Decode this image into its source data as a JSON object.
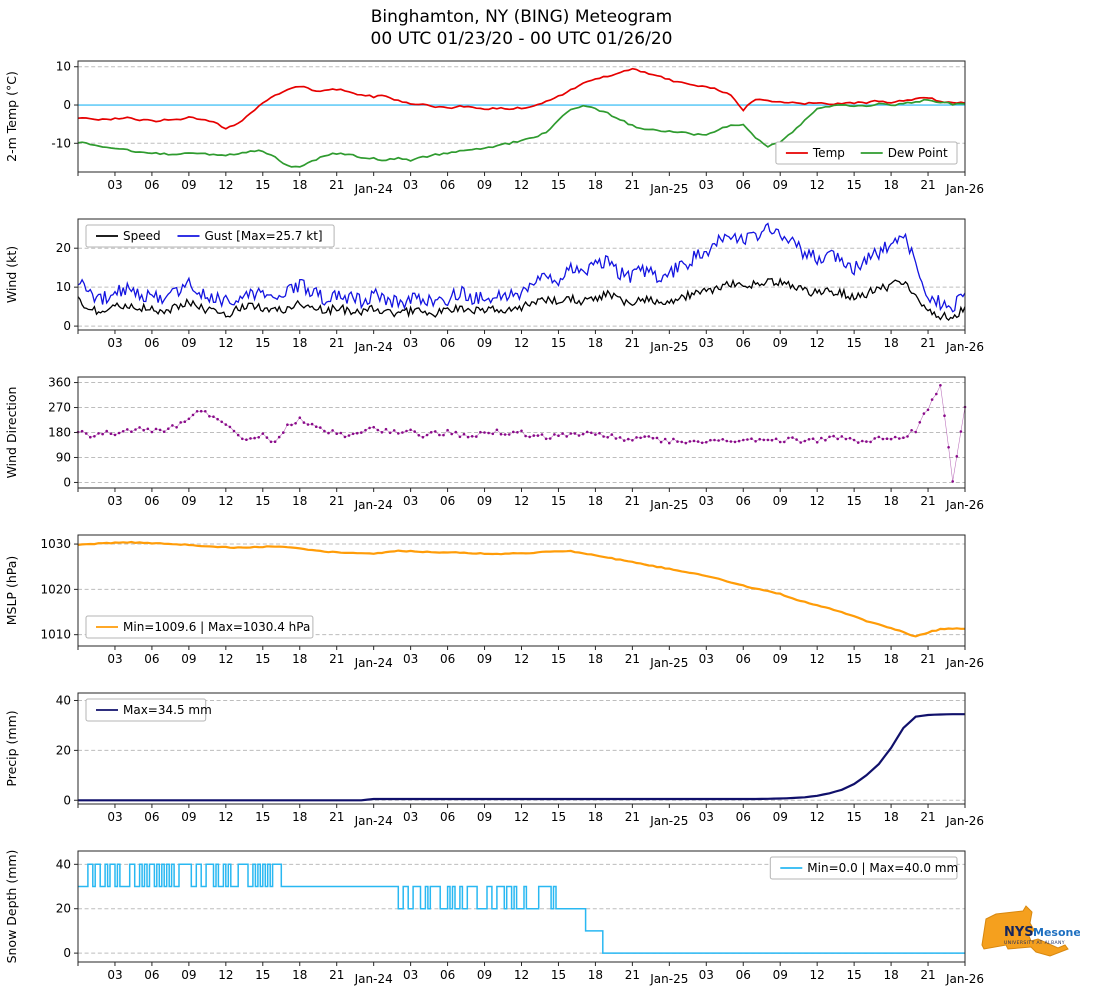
{
  "title": "Binghamton, NY (BING) Meteogram",
  "subtitle": "00 UTC 01/23/20 - 00 UTC 01/26/20",
  "logo": {
    "org": "NYS",
    "name": "Mesonet",
    "tagline": "UNIVERSITY AT ALBANY"
  },
  "x_axis": {
    "end_hour": 72,
    "tick_interval": 3,
    "day_labels": {
      "24": "Jan-24",
      "48": "Jan-25",
      "72": "Jan-26"
    }
  },
  "chart_data": [
    {
      "id": "temp",
      "type": "line",
      "ylabel": "2-m Temp (°C)",
      "ylim": [
        -17.5,
        11.5
      ],
      "yticks": [
        -10,
        0,
        10
      ],
      "refline": {
        "y": 0,
        "color": "#4cc3f5"
      },
      "legend": {
        "position": "bottom-right",
        "entries": [
          {
            "label": "Temp",
            "color": "#e60000"
          },
          {
            "label": "Dew Point",
            "color": "#2f9b2f"
          }
        ]
      },
      "series": [
        {
          "name": "Temp",
          "color": "#e60000",
          "width": 1.7,
          "subdiv": 3,
          "jitter": 0.25,
          "values": [
            -3.2,
            -3.6,
            -3.8,
            -3.5,
            -3.2,
            -3.8,
            -4.2,
            -4.0,
            -3.8,
            -3.3,
            -3.6,
            -4.6,
            -6.0,
            -4.8,
            -2.0,
            0.5,
            2.5,
            4.2,
            5.0,
            4.0,
            3.6,
            4.2,
            3.4,
            2.6,
            2.2,
            2.4,
            1.0,
            0.3,
            0.2,
            -0.4,
            -0.8,
            -0.3,
            -0.6,
            -1.0,
            -0.8,
            -0.9,
            -0.7,
            -0.2,
            0.8,
            2.2,
            4.0,
            5.8,
            6.8,
            7.6,
            8.6,
            9.3,
            8.6,
            7.6,
            6.6,
            5.8,
            5.2,
            4.6,
            4.0,
            2.6,
            -1.2,
            1.6,
            1.2,
            0.8,
            0.6,
            0.4,
            0.5,
            0.3,
            0.5,
            0.5,
            0.7,
            1.0,
            0.8,
            1.0,
            1.5,
            2.0,
            1.0,
            0.6,
            0.5
          ]
        },
        {
          "name": "Dew Point",
          "color": "#2f9b2f",
          "width": 1.7,
          "subdiv": 3,
          "jitter": 0.25,
          "values": [
            -9.8,
            -10.3,
            -10.8,
            -11.3,
            -11.8,
            -12.3,
            -12.6,
            -12.8,
            -12.9,
            -12.5,
            -12.6,
            -12.9,
            -13.0,
            -12.6,
            -12.2,
            -12.0,
            -13.5,
            -15.8,
            -16.2,
            -14.8,
            -13.2,
            -12.6,
            -12.8,
            -13.6,
            -14.0,
            -14.4,
            -14.0,
            -14.5,
            -13.6,
            -13.0,
            -12.5,
            -12.0,
            -11.6,
            -11.2,
            -10.6,
            -10.0,
            -9.4,
            -8.5,
            -7.0,
            -4.0,
            -1.2,
            -0.2,
            -1.0,
            -2.2,
            -3.8,
            -5.4,
            -6.2,
            -6.6,
            -6.8,
            -7.2,
            -7.6,
            -8.0,
            -6.5,
            -5.2,
            -5.0,
            -8.5,
            -11.0,
            -9.5,
            -7.0,
            -4.0,
            -1.0,
            -0.4,
            -0.1,
            -0.3,
            -0.1,
            0.2,
            0.0,
            0.4,
            0.9,
            1.4,
            0.7,
            0.3,
            0.3
          ]
        }
      ]
    },
    {
      "id": "wind",
      "type": "line",
      "ylabel": "Wind (kt)",
      "ylim": [
        -1,
        27.5
      ],
      "yticks": [
        0,
        10,
        20
      ],
      "legend": {
        "position": "top-left",
        "entries": [
          {
            "label": "Speed",
            "color": "#000000"
          },
          {
            "label": "Gust [Max=25.7 kt]",
            "color": "#1414e0"
          }
        ]
      },
      "series": [
        {
          "name": "Speed",
          "color": "#000000",
          "width": 1.3,
          "subdiv": 6,
          "jitter": 1.1,
          "clamp": [
            0.2,
            50
          ],
          "values": [
            6.5,
            4.5,
            3.8,
            4.8,
            5.8,
            4.6,
            4.2,
            3.6,
            4.8,
            6.2,
            4.6,
            3.6,
            3.0,
            4.2,
            5.0,
            4.6,
            3.8,
            4.6,
            6.0,
            4.8,
            3.8,
            4.6,
            4.0,
            3.6,
            4.4,
            3.8,
            3.2,
            3.8,
            4.0,
            3.2,
            3.8,
            4.6,
            4.0,
            3.8,
            4.6,
            4.2,
            5.0,
            6.0,
            7.0,
            6.2,
            7.2,
            6.4,
            7.4,
            8.2,
            6.6,
            6.2,
            7.0,
            6.4,
            6.6,
            7.4,
            8.2,
            9.0,
            10.0,
            11.0,
            10.2,
            11.0,
            11.8,
            11.2,
            10.2,
            9.2,
            8.4,
            9.2,
            8.4,
            7.6,
            8.4,
            9.4,
            10.2,
            11.8,
            8.0,
            4.0,
            2.8,
            2.0,
            5.0
          ]
        },
        {
          "name": "Gust",
          "color": "#1414e0",
          "width": 1.3,
          "subdiv": 6,
          "jitter": 1.9,
          "clamp": [
            0.2,
            50
          ],
          "values": [
            11.5,
            8.5,
            7.0,
            8.5,
            10.0,
            8.0,
            7.5,
            6.5,
            9.0,
            11.5,
            8.5,
            7.0,
            6.0,
            8.0,
            9.0,
            8.0,
            7.0,
            8.5,
            11.0,
            9.0,
            7.0,
            8.5,
            7.5,
            6.5,
            8.0,
            7.0,
            6.0,
            7.0,
            7.5,
            6.0,
            7.0,
            8.5,
            7.5,
            7.0,
            8.5,
            7.5,
            9.0,
            11.5,
            13.5,
            12.0,
            14.5,
            12.5,
            15.5,
            16.5,
            13.5,
            12.5,
            14.5,
            13.0,
            13.5,
            15.5,
            17.5,
            19.5,
            21.5,
            23.5,
            21.5,
            23.5,
            25.7,
            23.0,
            21.0,
            19.0,
            17.0,
            19.0,
            17.0,
            15.0,
            17.0,
            19.0,
            21.0,
            24.0,
            16.0,
            8.0,
            6.0,
            5.0,
            8.5
          ]
        }
      ]
    },
    {
      "id": "winddir",
      "type": "scatter",
      "ylabel": "Wind Direction",
      "ylim": [
        -20,
        380
      ],
      "yticks": [
        0,
        90,
        180,
        270,
        360
      ],
      "series": [
        {
          "name": "Direction",
          "color": "#8a0b8a",
          "style": "dots",
          "subdiv": 3,
          "jitter": 9,
          "clamp": [
            0,
            360
          ],
          "values": [
            178,
            172,
            180,
            170,
            186,
            192,
            188,
            182,
            205,
            235,
            255,
            235,
            205,
            165,
            152,
            168,
            148,
            205,
            228,
            212,
            188,
            176,
            168,
            182,
            192,
            186,
            176,
            182,
            172,
            176,
            180,
            172,
            168,
            176,
            182,
            172,
            178,
            170,
            165,
            172,
            168,
            176,
            170,
            166,
            160,
            158,
            163,
            155,
            150,
            148,
            153,
            146,
            150,
            156,
            148,
            153,
            158,
            150,
            156,
            148,
            152,
            156,
            162,
            150,
            146,
            156,
            162,
            168,
            188,
            268,
            352,
            8,
            272
          ]
        }
      ]
    },
    {
      "id": "mslp",
      "type": "line",
      "ylabel": "MSLP (hPa)",
      "ylim": [
        1007.5,
        1032
      ],
      "yticks": [
        1010,
        1020,
        1030
      ],
      "legend": {
        "position": "bottom-left",
        "entries": [
          {
            "label": "Min=1009.6 | Max=1030.4 hPa",
            "color": "#ff9c08"
          }
        ]
      },
      "series": [
        {
          "name": "MSLP",
          "color": "#ff9c08",
          "width": 2.2,
          "subdiv": 3,
          "jitter": 0.1,
          "values": [
            1029.8,
            1030.0,
            1030.2,
            1030.3,
            1030.4,
            1030.3,
            1030.2,
            1030.1,
            1030.0,
            1029.8,
            1029.6,
            1029.4,
            1029.3,
            1029.2,
            1029.3,
            1029.4,
            1029.5,
            1029.4,
            1029.0,
            1028.6,
            1028.3,
            1028.2,
            1028.1,
            1028.0,
            1027.9,
            1028.2,
            1028.5,
            1028.4,
            1028.3,
            1028.2,
            1028.2,
            1028.1,
            1028.0,
            1027.9,
            1027.8,
            1027.9,
            1028.0,
            1028.1,
            1028.3,
            1028.5,
            1028.4,
            1028.0,
            1027.5,
            1027.0,
            1026.5,
            1026.0,
            1025.5,
            1025.0,
            1024.5,
            1024.0,
            1023.5,
            1023.0,
            1022.3,
            1021.5,
            1020.8,
            1020.2,
            1019.6,
            1019.0,
            1018.0,
            1017.2,
            1016.5,
            1015.8,
            1015.0,
            1014.0,
            1013.0,
            1012.2,
            1011.5,
            1010.5,
            1009.6,
            1010.5,
            1011.2,
            1011.4,
            1011.3
          ]
        }
      ]
    },
    {
      "id": "precip",
      "type": "line",
      "ylabel": "Precip (mm)",
      "ylim": [
        -1.5,
        43
      ],
      "yticks": [
        0,
        20,
        40
      ],
      "legend": {
        "position": "top-left",
        "entries": [
          {
            "label": "Max=34.5 mm",
            "color": "#10106b"
          }
        ]
      },
      "series": [
        {
          "name": "Precip",
          "color": "#10106b",
          "width": 2.2,
          "subdiv": 2,
          "jitter": 0,
          "values": [
            0,
            0,
            0,
            0,
            0,
            0,
            0,
            0,
            0,
            0,
            0,
            0,
            0,
            0,
            0,
            0,
            0,
            0,
            0,
            0,
            0,
            0,
            0,
            0,
            0.5,
            0.5,
            0.5,
            0.5,
            0.5,
            0.5,
            0.5,
            0.5,
            0.5,
            0.5,
            0.5,
            0.5,
            0.5,
            0.5,
            0.5,
            0.5,
            0.5,
            0.5,
            0.5,
            0.5,
            0.5,
            0.5,
            0.5,
            0.5,
            0.5,
            0.5,
            0.5,
            0.5,
            0.5,
            0.5,
            0.5,
            0.5,
            0.6,
            0.7,
            0.9,
            1.2,
            1.8,
            2.8,
            4.2,
            6.5,
            10.0,
            14.5,
            21.0,
            29.0,
            33.5,
            34.2,
            34.4,
            34.5,
            34.5
          ]
        }
      ]
    },
    {
      "id": "snow",
      "type": "line",
      "ylabel": "Snow Depth (mm)",
      "ylim": [
        -4,
        46
      ],
      "yticks": [
        0,
        20,
        40
      ],
      "legend": {
        "position": "top-right",
        "entries": [
          {
            "label": "Min=0.0 | Max=40.0 mm",
            "color": "#29b8f2"
          }
        ]
      },
      "series": [
        {
          "name": "Snow Depth",
          "color": "#29b8f2",
          "width": 1.5,
          "segments": [
            {
              "t0": 0,
              "t1": 16.5,
              "type": "square",
              "low": 30,
              "high": 40
            },
            {
              "t0": 16.5,
              "t1": 26,
              "type": "flat",
              "value": 30
            },
            {
              "t0": 26,
              "t1": 39.5,
              "type": "square",
              "low": 20,
              "high": 30
            },
            {
              "t0": 39.5,
              "t1": 41.2,
              "type": "flat",
              "value": 20
            },
            {
              "t0": 41.2,
              "t1": 42.6,
              "type": "flat",
              "value": 10
            },
            {
              "t0": 42.6,
              "t1": 72,
              "type": "flat",
              "value": 0
            }
          ]
        }
      ]
    }
  ]
}
